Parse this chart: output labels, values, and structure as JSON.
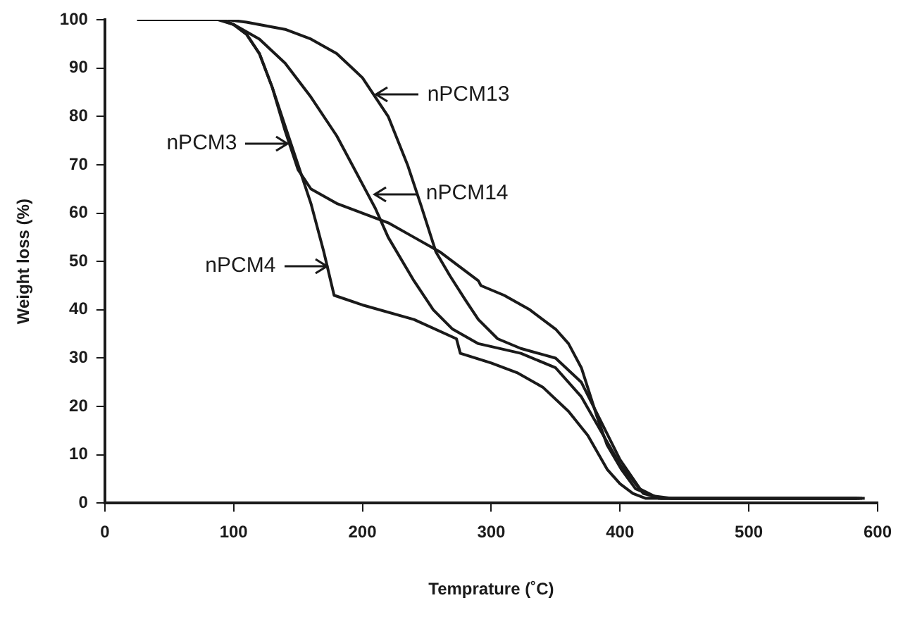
{
  "chart_data": {
    "type": "line",
    "xlabel": "Temprature (˚C)",
    "ylabel": "Weight loss (%)",
    "xlim": [
      0,
      600
    ],
    "xticks": [
      0,
      100,
      200,
      300,
      400,
      500,
      600
    ],
    "ylim": [
      0,
      100
    ],
    "yticks": [
      0,
      10,
      20,
      30,
      40,
      50,
      60,
      70,
      80,
      90,
      100
    ],
    "grid": false,
    "legend": false,
    "marker": "none",
    "line_style": "solid",
    "series": [
      {
        "color": "#1a1a1a",
        "x": [
          25,
          90,
          100,
          110,
          120,
          130,
          140,
          150,
          160,
          180,
          200,
          220,
          240,
          260,
          280,
          290,
          292,
          310,
          330,
          350,
          360,
          370,
          382,
          390,
          401,
          412,
          425,
          440,
          590
        ],
        "values": [
          100,
          100,
          99,
          97,
          93,
          86,
          77,
          69,
          65,
          62,
          60,
          58,
          55,
          52,
          48,
          46,
          45,
          43,
          40,
          36,
          33,
          28,
          18,
          12,
          7,
          3,
          1.5,
          1,
          1
        ]
      },
      {
        "color": "#1a1a1a",
        "x": [
          88,
          100,
          110,
          120,
          130,
          140,
          150,
          160,
          170,
          178,
          200,
          240,
          273,
          276,
          300,
          320,
          340,
          360,
          375,
          390,
          400,
          410,
          420,
          588
        ],
        "values": [
          100,
          99,
          97,
          93,
          86,
          78,
          70,
          62,
          52,
          43,
          41,
          38,
          34,
          31,
          29,
          27,
          24,
          19,
          14,
          7,
          4,
          2,
          1,
          1
        ]
      },
      {
        "color": "#1a1a1a",
        "x": [
          92,
          100,
          120,
          140,
          160,
          180,
          200,
          210,
          220,
          240,
          255,
          270,
          290,
          323,
          350,
          370,
          385,
          400,
          415,
          430,
          586
        ],
        "values": [
          100,
          99,
          96,
          91,
          84,
          76,
          66,
          61,
          55,
          46,
          40,
          36,
          33,
          31,
          28,
          22,
          15,
          8,
          3,
          1,
          1
        ]
      },
      {
        "color": "#1a1a1a",
        "x": [
          95,
          110,
          140,
          160,
          180,
          200,
          220,
          235,
          245,
          257,
          268,
          280,
          290,
          305,
          323,
          350,
          370,
          385,
          400,
          418,
          432,
          584
        ],
        "values": [
          100,
          99.5,
          98,
          96,
          93,
          88,
          80,
          70,
          62,
          52,
          47,
          42,
          38,
          34,
          32,
          30,
          25,
          17,
          9,
          2,
          1,
          1
        ]
      }
    ],
    "annotations": [
      {
        "text": "nPCM13",
        "x": 211,
        "y": 84.5
      },
      {
        "text": "nPCM3",
        "x": 142,
        "y": 74.4
      },
      {
        "text": "nPCM14",
        "x": 210,
        "y": 64
      },
      {
        "text": "nPCM4",
        "x": 172,
        "y": 49
      }
    ]
  }
}
